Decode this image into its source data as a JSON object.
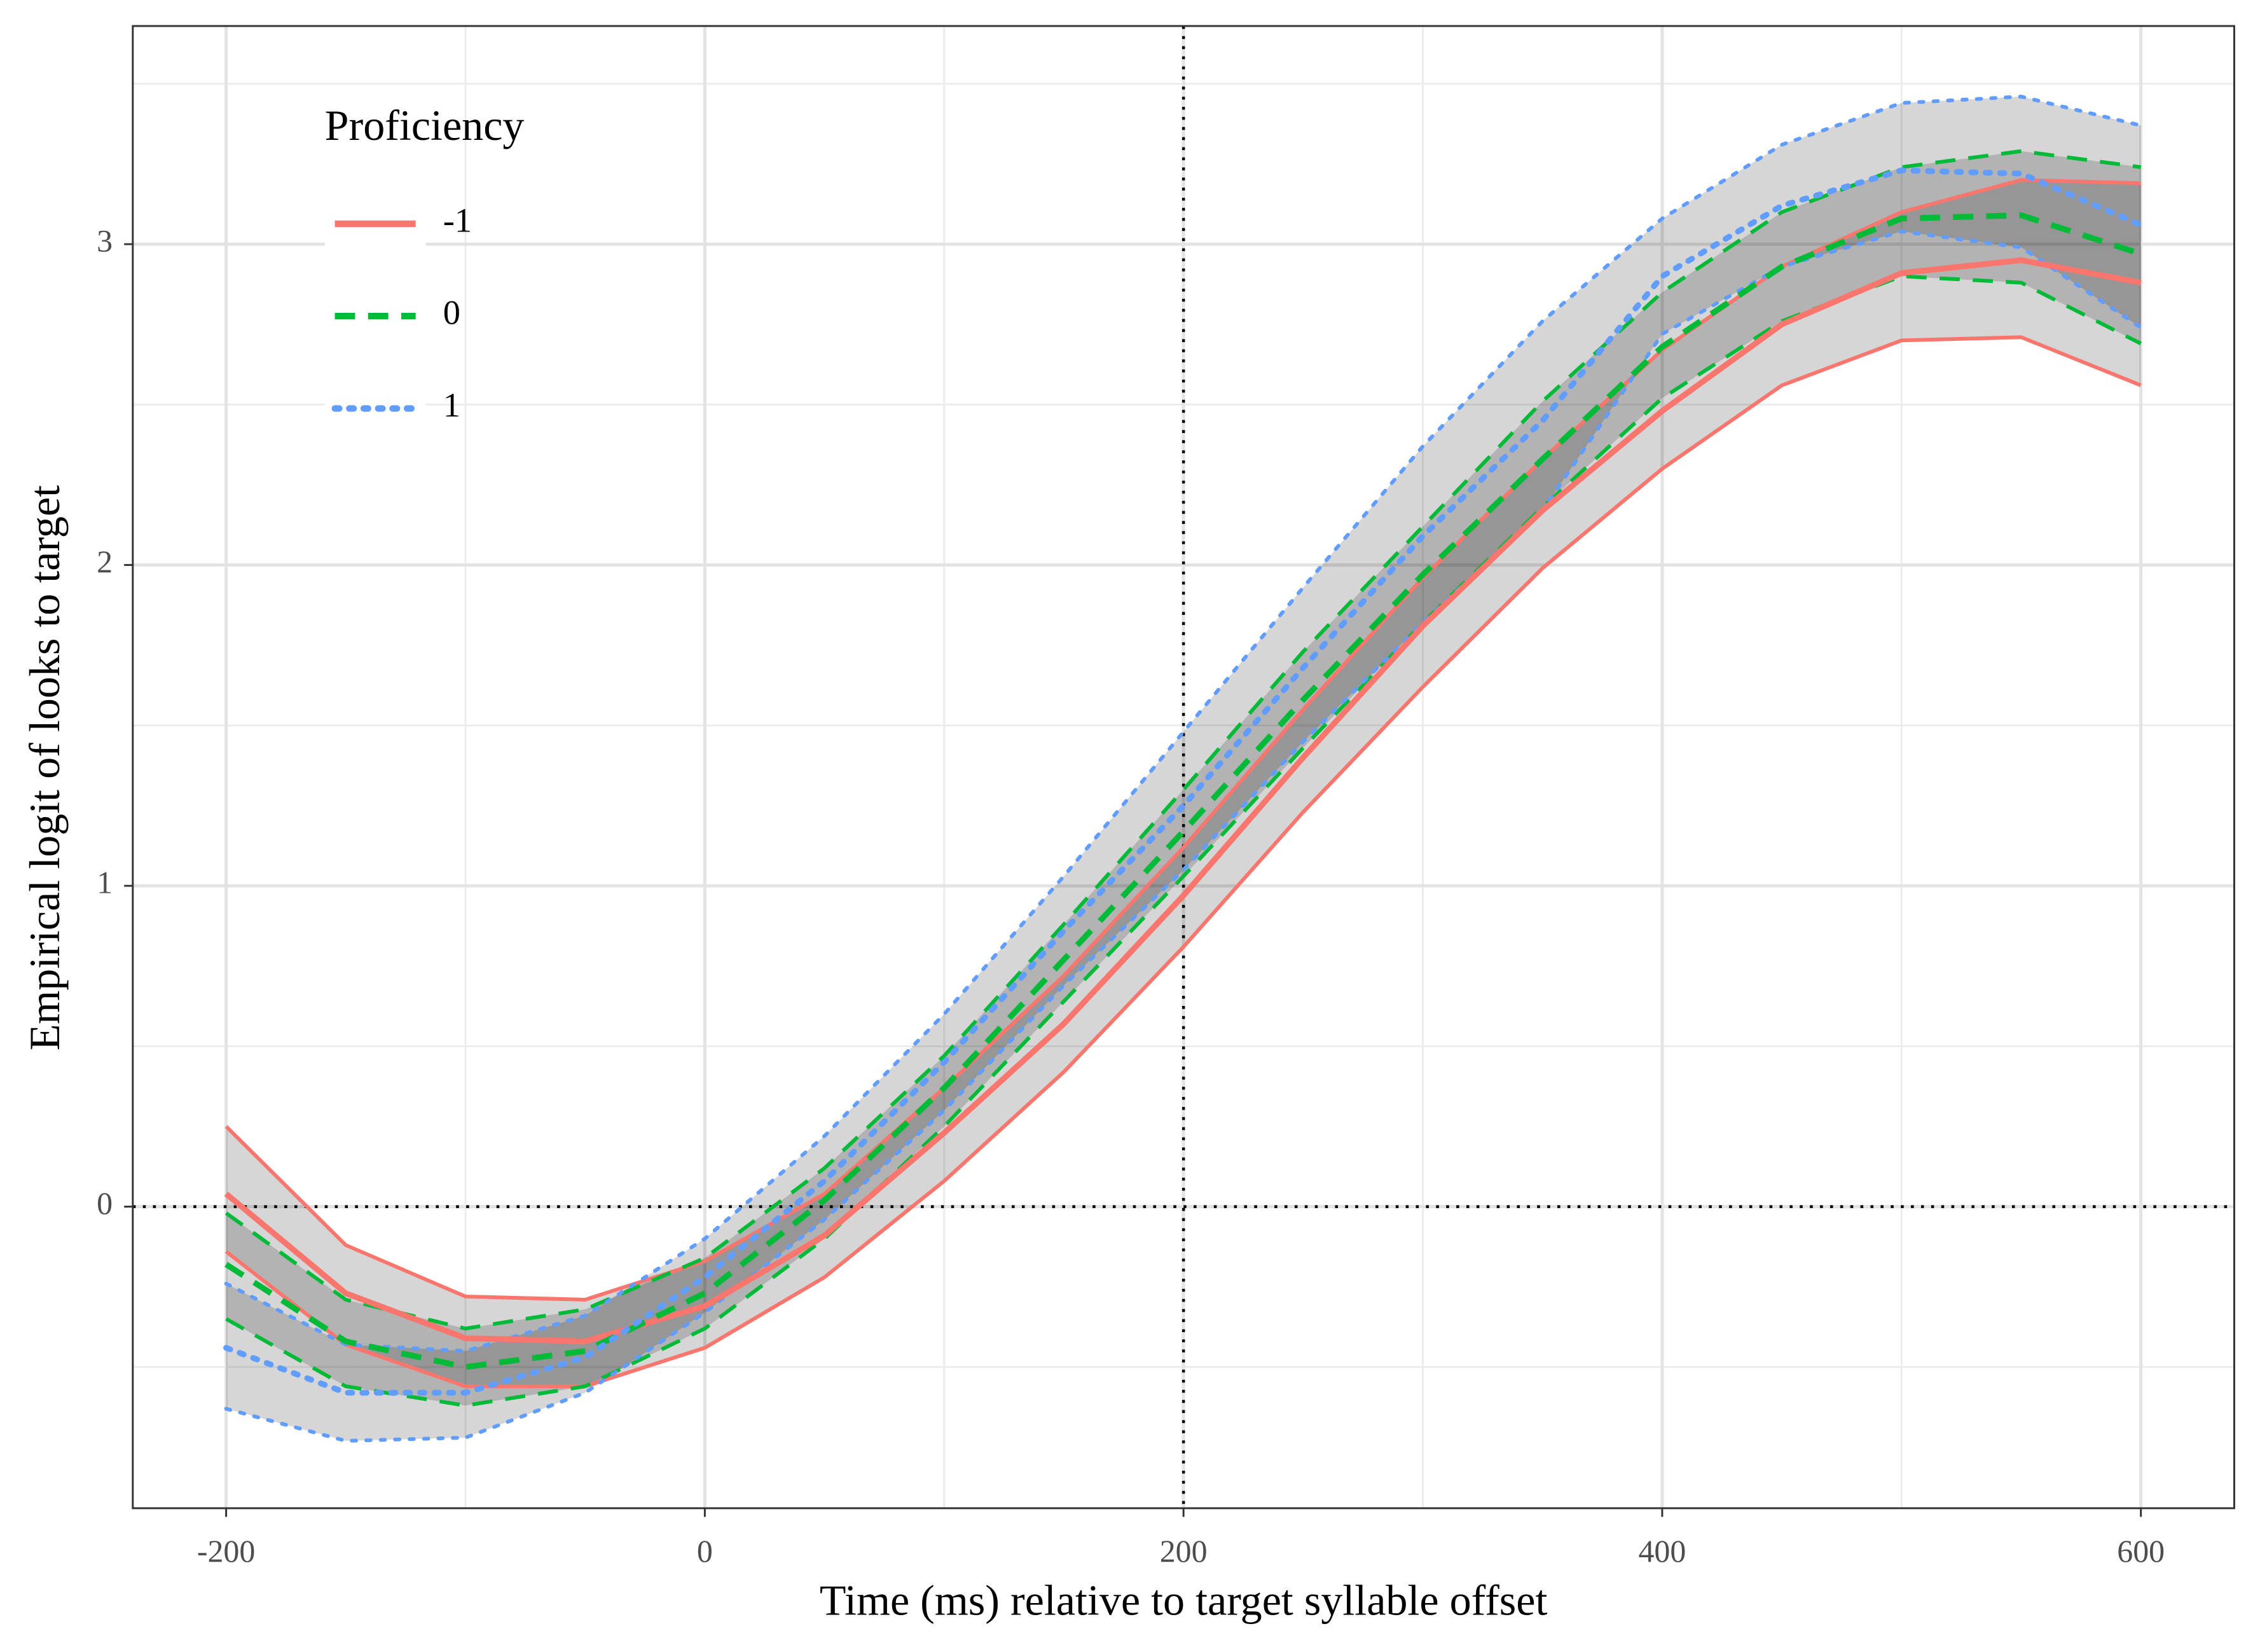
{
  "chart_data": {
    "type": "line",
    "x_label": "Time (ms) relative to target syllable offset",
    "y_label": "Empirical logit of looks to target",
    "legend_title": "Proficiency",
    "legend_position": "top-left",
    "grid": true,
    "xlim": [
      -239,
      639
    ],
    "ylim": [
      -0.94,
      3.68
    ],
    "xticks": [
      -200,
      0,
      200,
      400,
      600
    ],
    "yticks": [
      0,
      1,
      2,
      3
    ],
    "x_minor_ticks": [
      -100,
      100,
      300,
      500
    ],
    "y_minor_ticks": [
      -0.5,
      0.5,
      1.5,
      2.5,
      3.5
    ],
    "vlines": [
      200
    ],
    "hlines": [
      0
    ],
    "ribbon_color": "#000000",
    "x": [
      -200,
      -150,
      -100,
      -50,
      0,
      50,
      100,
      150,
      200,
      250,
      300,
      350,
      400,
      450,
      500,
      550,
      600
    ],
    "series": [
      {
        "name": "-1",
        "color": "#F8766D",
        "dash": "solid",
        "values": [
          0.04,
          -0.27,
          -0.41,
          -0.42,
          -0.31,
          -0.09,
          0.23,
          0.57,
          0.97,
          1.4,
          1.81,
          2.17,
          2.48,
          2.75,
          2.91,
          2.95,
          2.88
        ],
        "upper": [
          0.25,
          -0.12,
          -0.28,
          -0.29,
          -0.17,
          0.04,
          0.37,
          0.72,
          1.12,
          1.55,
          1.96,
          2.33,
          2.67,
          2.93,
          3.1,
          3.2,
          3.19
        ],
        "lower": [
          -0.14,
          -0.43,
          -0.56,
          -0.56,
          -0.44,
          -0.22,
          0.08,
          0.42,
          0.81,
          1.23,
          1.62,
          1.99,
          2.3,
          2.56,
          2.7,
          2.71,
          2.56
        ]
      },
      {
        "name": "0",
        "color": "#00BA38",
        "dash": "dashed",
        "values": [
          -0.18,
          -0.42,
          -0.5,
          -0.45,
          -0.27,
          0.02,
          0.37,
          0.77,
          1.17,
          1.58,
          1.97,
          2.33,
          2.68,
          2.93,
          3.08,
          3.09,
          2.97
        ],
        "upper": [
          -0.02,
          -0.29,
          -0.38,
          -0.32,
          -0.16,
          0.12,
          0.47,
          0.88,
          1.3,
          1.73,
          2.12,
          2.51,
          2.85,
          3.1,
          3.24,
          3.29,
          3.24
        ],
        "lower": [
          -0.35,
          -0.56,
          -0.62,
          -0.56,
          -0.38,
          -0.1,
          0.25,
          0.64,
          1.03,
          1.43,
          1.82,
          2.18,
          2.52,
          2.76,
          2.9,
          2.88,
          2.69
        ]
      },
      {
        "name": "1",
        "color": "#619CFF",
        "dash": "dotted",
        "values": [
          -0.44,
          -0.58,
          -0.58,
          -0.47,
          -0.22,
          0.08,
          0.45,
          0.86,
          1.25,
          1.68,
          2.09,
          2.45,
          2.9,
          3.12,
          3.23,
          3.22,
          3.06
        ],
        "upper": [
          -0.24,
          -0.43,
          -0.45,
          -0.34,
          -0.1,
          0.22,
          0.6,
          1.03,
          1.48,
          1.93,
          2.37,
          2.76,
          3.08,
          3.31,
          3.44,
          3.46,
          3.37
        ],
        "lower": [
          -0.63,
          -0.73,
          -0.72,
          -0.58,
          -0.33,
          -0.04,
          0.3,
          0.69,
          1.05,
          1.45,
          1.82,
          2.17,
          2.72,
          2.93,
          3.04,
          2.99,
          2.74
        ]
      }
    ]
  }
}
